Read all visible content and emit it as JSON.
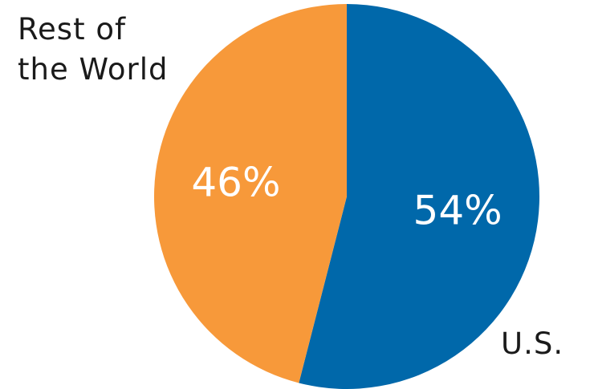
{
  "chart_data": {
    "type": "pie",
    "categories": [
      "U.S.",
      "Rest of the World"
    ],
    "values": [
      54,
      46
    ],
    "value_labels": [
      "54%",
      "46%"
    ],
    "colors": [
      "#0068AA",
      "#F7993A"
    ],
    "legend_lines": {
      "us": [
        "U.S."
      ],
      "rest": [
        "Rest of",
        "the World"
      ]
    },
    "start_angle_deg": 0,
    "direction": "clockwise",
    "legend": "none",
    "title": ""
  }
}
